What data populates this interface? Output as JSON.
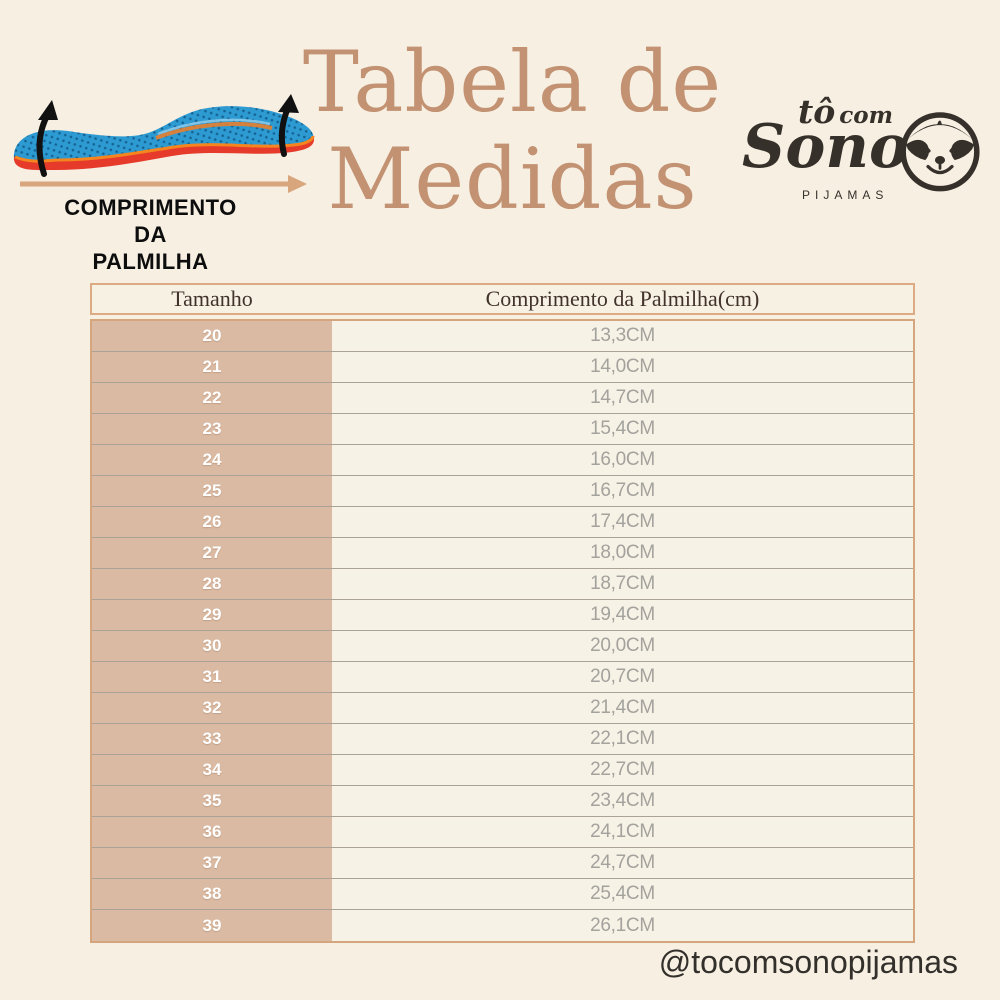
{
  "page": {
    "title_line1": "Tabela de",
    "title_line2": "Medidas",
    "handle": "@tocomsonopijamas"
  },
  "insole_figure": {
    "label_lines": [
      "COMPRIMENTO",
      "DA",
      "PALMILHA"
    ]
  },
  "logo": {
    "to": "tô",
    "com": "com",
    "sono": "Sono",
    "pijamas": "PIJAMAS"
  },
  "table": {
    "headers": [
      "Tamanho",
      "Comprimento da Palmilha(cm)"
    ],
    "rows": [
      {
        "size": "20",
        "length": "13,3CM"
      },
      {
        "size": "21",
        "length": "14,0CM"
      },
      {
        "size": "22",
        "length": "14,7CM"
      },
      {
        "size": "23",
        "length": "15,4CM"
      },
      {
        "size": "24",
        "length": "16,0CM"
      },
      {
        "size": "25",
        "length": "16,7CM"
      },
      {
        "size": "26",
        "length": "17,4CM"
      },
      {
        "size": "27",
        "length": "18,0CM"
      },
      {
        "size": "28",
        "length": "18,7CM"
      },
      {
        "size": "29",
        "length": "19,4CM"
      },
      {
        "size": "30",
        "length": "20,0CM"
      },
      {
        "size": "31",
        "length": "20,7CM"
      },
      {
        "size": "32",
        "length": "21,4CM"
      },
      {
        "size": "33",
        "length": "22,1CM"
      },
      {
        "size": "34",
        "length": "22,7CM"
      },
      {
        "size": "35",
        "length": "23,4CM"
      },
      {
        "size": "36",
        "length": "24,1CM"
      },
      {
        "size": "37",
        "length": "24,7CM"
      },
      {
        "size": "38",
        "length": "25,4CM"
      },
      {
        "size": "39",
        "length": "26,1CM"
      }
    ]
  },
  "colors": {
    "background": "#f6efe2",
    "title": "#c29272",
    "size_col_bg": "#dabaa2",
    "value_text": "#a3a29d",
    "header_border": "#dcab83",
    "insole_blue": "#2d9ad2",
    "insole_red": "#e63a2a",
    "insole_orange": "#f5861f",
    "arrow_tan": "#d8a57c",
    "logo_ink": "#36302b"
  }
}
